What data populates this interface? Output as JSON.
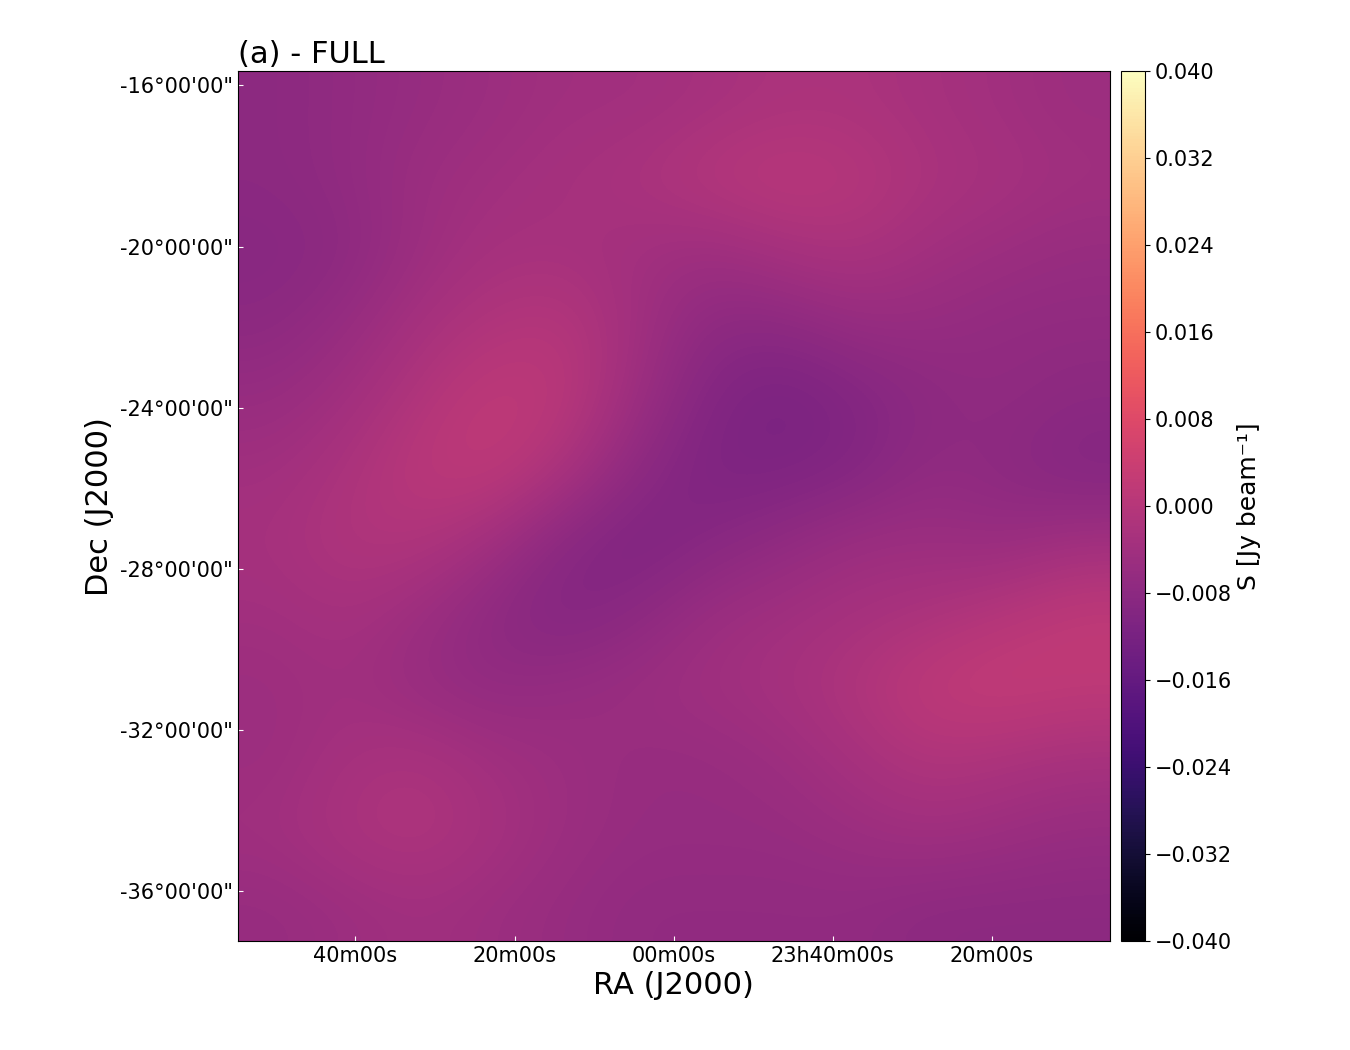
{
  "chart_data": {
    "type": "heatmap",
    "title": "(a) - FULL",
    "x_label": "RA (J2000)",
    "y_label": "Dec (J2000)",
    "xlim": [
      54.8,
      -54.8
    ],
    "ylim": [
      -37.24,
      -15.65
    ],
    "xticks": [
      {
        "value": 40,
        "label": "40m00s"
      },
      {
        "value": 20,
        "label": "20m00s"
      },
      {
        "value": 0,
        "label": "00m00s"
      },
      {
        "value": -20,
        "label": "23h40m00s"
      },
      {
        "value": -40,
        "label": "20m00s"
      }
    ],
    "yticks": [
      {
        "value": -16,
        "label": "-16°00'00\""
      },
      {
        "value": -20,
        "label": "-20°00'00\""
      },
      {
        "value": -24,
        "label": "-24°00'00\""
      },
      {
        "value": -28,
        "label": "-28°00'00\""
      },
      {
        "value": -32,
        "label": "-32°00'00\""
      },
      {
        "value": -36,
        "label": "-36°00'00\""
      }
    ],
    "color": "magma",
    "cells": [
      [
        -0.008,
        -0.007,
        -0.006,
        -0.005,
        -0.004,
        -0.004,
        -0.003,
        -0.002,
        -0.002,
        -0.003,
        -0.004,
        -0.005
      ],
      [
        -0.008,
        -0.007,
        -0.005,
        -0.004,
        -0.003,
        -0.002,
        0.0,
        0.001,
        0.0,
        -0.002,
        -0.003,
        -0.004
      ],
      [
        -0.009,
        -0.008,
        -0.005,
        -0.003,
        -0.003,
        -0.004,
        -0.005,
        -0.003,
        -0.002,
        -0.004,
        -0.005,
        -0.006
      ],
      [
        -0.008,
        -0.006,
        -0.003,
        -0.001,
        0.0,
        -0.004,
        -0.008,
        -0.008,
        -0.006,
        -0.006,
        -0.007,
        -0.007
      ],
      [
        -0.006,
        -0.004,
        -0.001,
        0.002,
        0.001,
        -0.005,
        -0.01,
        -0.012,
        -0.01,
        -0.008,
        -0.007,
        -0.008
      ],
      [
        -0.004,
        -0.002,
        0.001,
        0.002,
        -0.002,
        -0.008,
        -0.011,
        -0.011,
        -0.01,
        -0.007,
        -0.008,
        -0.01
      ],
      [
        -0.003,
        -0.001,
        -0.001,
        -0.004,
        -0.009,
        -0.011,
        -0.009,
        -0.007,
        -0.005,
        -0.005,
        -0.006,
        -0.004
      ],
      [
        -0.004,
        -0.003,
        -0.005,
        -0.008,
        -0.01,
        -0.008,
        -0.005,
        -0.004,
        -0.003,
        -0.002,
        0.0,
        0.002
      ],
      [
        -0.005,
        -0.004,
        -0.006,
        -0.007,
        -0.006,
        -0.005,
        -0.004,
        -0.003,
        -0.001,
        0.002,
        0.003,
        0.002
      ],
      [
        -0.005,
        -0.003,
        -0.002,
        -0.004,
        -0.005,
        -0.006,
        -0.006,
        -0.005,
        -0.003,
        -0.001,
        -0.002,
        -0.003
      ],
      [
        -0.004,
        -0.002,
        -0.001,
        -0.003,
        -0.005,
        -0.006,
        -0.006,
        -0.006,
        -0.005,
        -0.004,
        -0.005,
        -0.006
      ],
      [
        -0.006,
        -0.005,
        -0.004,
        -0.005,
        -0.006,
        -0.007,
        -0.007,
        -0.007,
        -0.007,
        -0.008,
        -0.008,
        -0.008
      ]
    ],
    "colorbar": {
      "label": "S [Jy beam⁻¹]",
      "range": [
        -0.04,
        0.04
      ],
      "ticks": [
        {
          "value": 0.04,
          "label": "0.040"
        },
        {
          "value": 0.032,
          "label": "0.032"
        },
        {
          "value": 0.024,
          "label": "0.024"
        },
        {
          "value": 0.016,
          "label": "0.016"
        },
        {
          "value": 0.008,
          "label": "0.008"
        },
        {
          "value": 0.0,
          "label": "0.000"
        },
        {
          "value": -0.008,
          "label": "−0.008"
        },
        {
          "value": -0.016,
          "label": "−0.016"
        },
        {
          "value": -0.024,
          "label": "−0.024"
        },
        {
          "value": -0.032,
          "label": "−0.032"
        },
        {
          "value": -0.04,
          "label": "−0.040"
        }
      ]
    }
  }
}
